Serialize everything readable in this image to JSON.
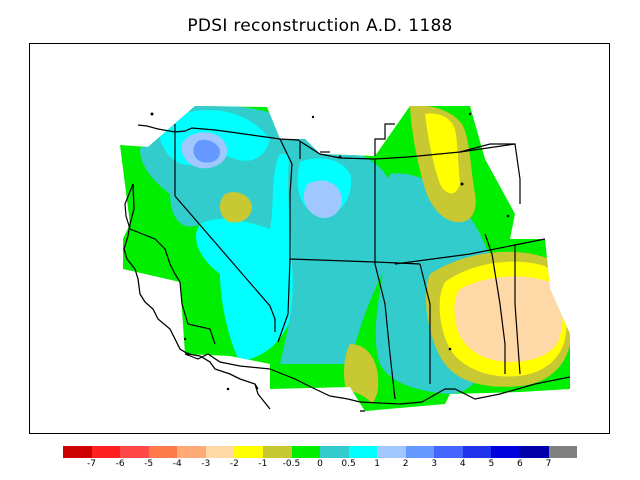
{
  "title": "PDSI reconstruction A.D. 1188",
  "legend": {
    "colors": [
      "#cc0000",
      "#ff2020",
      "#ff4848",
      "#ff7a4a",
      "#ffaa77",
      "#ffd8a8",
      "#ffff00",
      "#c8c832",
      "#00ee00",
      "#33cccc",
      "#00ffff",
      "#a0c8ff",
      "#6699ff",
      "#4466ff",
      "#2233ee",
      "#0000dd",
      "#0000aa",
      "#808080"
    ],
    "labels": [
      "-7",
      "-6",
      "-5",
      "-4",
      "-3",
      "-2",
      "-1",
      "-0.5",
      "0",
      "0.5",
      "1",
      "2",
      "3",
      "4",
      "5",
      "6",
      "7"
    ]
  },
  "map": {
    "color_classes": {
      "dry_moderate": "#ffd8a8",
      "dry_light": "#ffff00",
      "near_normal_dry": "#c8c832",
      "normal": "#00ee00",
      "wet_light": "#33cccc",
      "wet_moderate": "#00ffff",
      "wet": "#a0c8ff",
      "wet_strong": "#6699ff"
    }
  }
}
